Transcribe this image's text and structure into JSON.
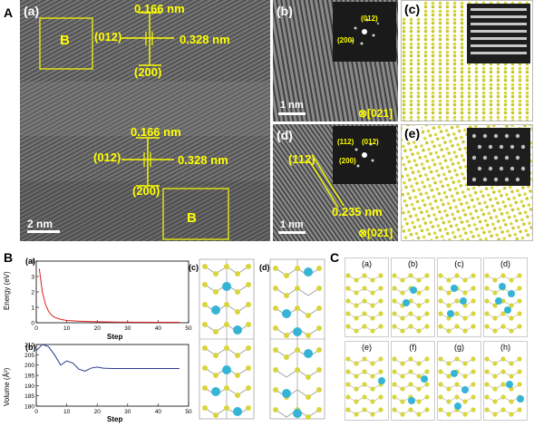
{
  "figure_letters": {
    "A": "A",
    "B": "B",
    "C": "C"
  },
  "panelA": {
    "a": {
      "label": "(a)",
      "box1_label": "B",
      "box2_label": "B",
      "top": {
        "d1": "0.166 nm",
        "plane1": "(012)",
        "d2": "0.328 nm",
        "plane2": "(200)"
      },
      "bottom": {
        "d1": "0.166 nm",
        "plane1": "(012)",
        "d2": "0.328 nm",
        "plane2": "(200)"
      },
      "scale": "2 nm"
    },
    "b": {
      "label": "(b)",
      "fft_plane1": "(012)",
      "fft_plane2": "(200)",
      "scale": "1 nm",
      "zone": "⊗[021]"
    },
    "c": {
      "label": "(c)"
    },
    "d": {
      "label": "(d)",
      "plane": "(112)",
      "fft_plane1": "(112)",
      "fft_plane2": "(012)",
      "fft_plane3": "(200)",
      "dspacing": "0.235 nm",
      "scale": "1 nm",
      "zone": "⊗[021]"
    },
    "e": {
      "label": "(e)"
    }
  },
  "panelB": {
    "a": {
      "label": "(a)",
      "ylabel": "Energy (eV)",
      "xlabel": "Step",
      "yticks": [
        "4",
        "3",
        "2",
        "1",
        "0"
      ],
      "xticks": [
        "0",
        "10",
        "20",
        "30",
        "40",
        "50"
      ]
    },
    "b": {
      "label": "(b)",
      "ylabel": "Volume (Å³)",
      "xlabel": "Step",
      "yticks": [
        "210",
        "205",
        "200",
        "195",
        "190",
        "185",
        "180"
      ],
      "xticks": [
        "0",
        "10",
        "20",
        "30",
        "40",
        "50"
      ]
    },
    "c": {
      "label": "(c)"
    },
    "d": {
      "label": "(d)"
    }
  },
  "panelC": {
    "labels": [
      "(a)",
      "(b)",
      "(c)",
      "(d)",
      "(e)",
      "(f)",
      "(g)",
      "(h)"
    ]
  },
  "chart_data": [
    {
      "type": "line",
      "ylabel": "Energy (eV)",
      "xlabel": "Step",
      "xlim": [
        0,
        50
      ],
      "ylim": [
        0,
        4
      ],
      "series": [
        {
          "color": "#e02020",
          "x": [
            1,
            2,
            3,
            4,
            5,
            6,
            8,
            10,
            14,
            18,
            24,
            30,
            40,
            47
          ],
          "y": [
            3.5,
            2.0,
            1.2,
            0.75,
            0.5,
            0.35,
            0.22,
            0.15,
            0.1,
            0.07,
            0.05,
            0.04,
            0.03,
            0.03
          ]
        }
      ]
    },
    {
      "type": "line",
      "ylabel": "Volume (Å³)",
      "xlabel": "Step",
      "xlim": [
        0,
        50
      ],
      "ylim": [
        180,
        210
      ],
      "series": [
        {
          "color": "#2a3a8a",
          "x": [
            0,
            2,
            4,
            6,
            8,
            10,
            12,
            14,
            16,
            18,
            20,
            22,
            25,
            30,
            40,
            47
          ],
          "y": [
            207,
            210,
            209,
            205,
            200,
            202,
            201,
            198,
            197,
            198.5,
            199,
            198.5,
            198.3,
            198.3,
            198.3,
            198.3
          ]
        }
      ]
    }
  ],
  "colors": {
    "atom_yellow": "#d8d63a",
    "atom_blue": "#35b4d6",
    "tem_yellow": "#ffff00"
  }
}
